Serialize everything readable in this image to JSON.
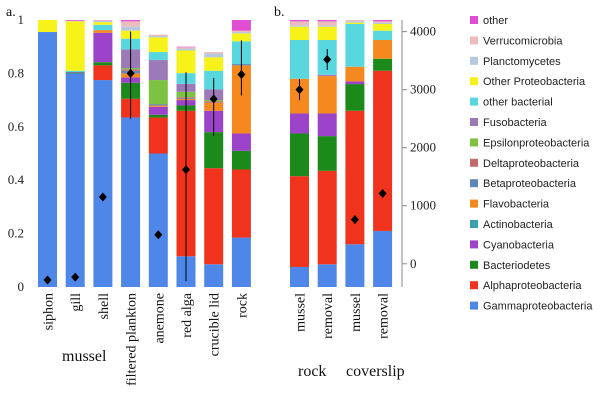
{
  "chart_data": {
    "type": "bar",
    "stacked": true,
    "left_axis": {
      "ylim": [
        0,
        1
      ],
      "ticks": [
        "0",
        "0.2",
        "0.4",
        "0.6",
        "0.8",
        "1"
      ]
    },
    "right_axis": {
      "ylim": [
        -400,
        4200
      ],
      "ticks": [
        "0",
        "1000",
        "2000",
        "3000",
        "4000"
      ]
    },
    "panel_labels": [
      "a.",
      "b."
    ],
    "group_labels": [
      "mussel",
      "rock",
      "coverslip"
    ],
    "series_order": [
      "Gammaproteobacteria",
      "Alphaproteobacteria",
      "Bacteriodetes",
      "Cyanobacteria",
      "Actinobacteria",
      "Flavobacteria",
      "Betaproteobacteria",
      "Deltaproteobacteria",
      "Epsilonproteobacteria",
      "Fusobacteria",
      "other bacterial",
      "Other Proteobacteria",
      "Planctomycetes",
      "Verrucomicrobia",
      "other"
    ],
    "series_colors": {
      "Gammaproteobacteria": "#4f87e8",
      "Alphaproteobacteria": "#f0331c",
      "Bacteriodetes": "#1b8a1b",
      "Cyanobacteria": "#9b43c9",
      "Actinobacteria": "#3c9fae",
      "Flavobacteria": "#f5891f",
      "Betaproteobacteria": "#5f86b6",
      "Deltaproteobacteria": "#c36a6a",
      "Epsilonproteobacteria": "#7ec242",
      "Fusobacteria": "#9b7ab7",
      "other bacterial": "#59d7df",
      "Other Proteobacteria": "#f6f21a",
      "Planctomycetes": "#b6c8dc",
      "Verrucomicrobia": "#ecbcbc",
      "other": "#e04fd2"
    },
    "legend": [
      "other",
      "Verrucomicrobia",
      "Planctomycetes",
      "Other Proteobacteria",
      "other bacterial",
      "Fusobacteria",
      "Epsilonproteobacteria",
      "Deltaproteobacteria",
      "Betaproteobacteria",
      "Flavobacteria",
      "Actinobacteria",
      "Cyanobacteria",
      "Bacteriodetes",
      "Alphaproteobacteria",
      "Gammaproteobacteria"
    ],
    "panels": [
      {
        "categories": [
          "siphon",
          "gill",
          "shell",
          "filtered plankton",
          "anemone",
          "red alga",
          "crucible lid",
          "rock"
        ],
        "series": [
          {
            "name": "Gammaproteobacteria",
            "values": [
              0.955,
              0.8,
              0.775,
              0.635,
              0.5,
              0.115,
              0.085,
              0.185
            ]
          },
          {
            "name": "Alphaproteobacteria",
            "values": [
              0,
              0,
              0.055,
              0.07,
              0.135,
              0.545,
              0.36,
              0.255
            ]
          },
          {
            "name": "Bacteriodetes",
            "values": [
              0,
              0.003,
              0.012,
              0.06,
              0.01,
              0.02,
              0.135,
              0.07
            ]
          },
          {
            "name": "Cyanobacteria",
            "values": [
              0,
              0.002,
              0.11,
              0.02,
              0.03,
              0.02,
              0.08,
              0.065
            ]
          },
          {
            "name": "Actinobacteria",
            "values": [
              0,
              0,
              0,
              0,
              0,
              0,
              0,
              0
            ]
          },
          {
            "name": "Flavobacteria",
            "values": [
              0,
              0,
              0.01,
              0.015,
              0.005,
              0.005,
              0.03,
              0.255
            ]
          },
          {
            "name": "Betaproteobacteria",
            "values": [
              0,
              0,
              0,
              0.01,
              0.005,
              0.003,
              0,
              0.005
            ]
          },
          {
            "name": "Deltaproteobacteria",
            "values": [
              0,
              0,
              0,
              0.005,
              0,
              0.003,
              0.005,
              0
            ]
          },
          {
            "name": "Epsilonproteobacteria",
            "values": [
              0,
              0,
              0,
              0.005,
              0.09,
              0.02,
              0.005,
              0
            ]
          },
          {
            "name": "Fusobacteria",
            "values": [
              0,
              0,
              0,
              0.07,
              0.075,
              0.03,
              0.04,
              0
            ]
          },
          {
            "name": "other bacterial",
            "values": [
              0,
              0.005,
              0.02,
              0.04,
              0.03,
              0.04,
              0.07,
              0.085
            ]
          },
          {
            "name": "Other Proteobacteria",
            "values": [
              0.045,
              0.185,
              0.01,
              0.03,
              0.055,
              0.085,
              0.05,
              0.03
            ]
          },
          {
            "name": "Planctomycetes",
            "values": [
              0,
              0,
              0.005,
              0.015,
              0.005,
              0.007,
              0.015,
              0.005
            ]
          },
          {
            "name": "Verrucomicrobia",
            "values": [
              0,
              0.002,
              0.002,
              0.02,
              0.005,
              0.005,
              0.005,
              0.005
            ]
          },
          {
            "name": "other",
            "values": [
              0,
              0.003,
              0.001,
              0.005,
              0,
              0.002,
              0,
              0.04
            ]
          }
        ],
        "right_axis_points": {
          "name": "markers",
          "values": [
            -280,
            -230,
            1150,
            3280,
            500,
            1620,
            2840,
            3260
          ],
          "error_low": [
            -280,
            -230,
            1150,
            2500,
            500,
            -300,
            2200,
            2900
          ],
          "error_high": [
            -280,
            -230,
            1150,
            4000,
            500,
            3300,
            3200,
            3850
          ]
        }
      },
      {
        "categories": [
          "mussel",
          "removal",
          "mussel",
          "removal"
        ],
        "series": [
          {
            "name": "Gammaproteobacteria",
            "values": [
              0.075,
              0.085,
              0.16,
              0.21
            ]
          },
          {
            "name": "Alphaproteobacteria",
            "values": [
              0.34,
              0.35,
              0.5,
              0.6
            ]
          },
          {
            "name": "Bacteriodetes",
            "values": [
              0.16,
              0.13,
              0.1,
              0.045
            ]
          },
          {
            "name": "Cyanobacteria",
            "values": [
              0.075,
              0.085,
              0.01,
              0
            ]
          },
          {
            "name": "Actinobacteria",
            "values": [
              0,
              0,
              0,
              0
            ]
          },
          {
            "name": "Flavobacteria",
            "values": [
              0.13,
              0.14,
              0.055,
              0.07
            ]
          },
          {
            "name": "Betaproteobacteria",
            "values": [
              0,
              0,
              0,
              0
            ]
          },
          {
            "name": "Deltaproteobacteria",
            "values": [
              0,
              0,
              0,
              0
            ]
          },
          {
            "name": "Epsilonproteobacteria",
            "values": [
              0,
              0,
              0,
              0
            ]
          },
          {
            "name": "Fusobacteria",
            "values": [
              0,
              0.005,
              0,
              0
            ]
          },
          {
            "name": "other bacterial",
            "values": [
              0.145,
              0.13,
              0.16,
              0.035
            ]
          },
          {
            "name": "Other Proteobacteria",
            "values": [
              0.05,
              0.05,
              0.005,
              0.025
            ]
          },
          {
            "name": "Planctomycetes",
            "values": [
              0.005,
              0.005,
              0.005,
              0.005
            ]
          },
          {
            "name": "Verrucomicrobia",
            "values": [
              0.015,
              0.015,
              0.005,
              0.005
            ]
          },
          {
            "name": "other",
            "values": [
              0.005,
              0.005,
              0,
              0.005
            ]
          }
        ],
        "right_axis_points": {
          "name": "markers",
          "values": [
            3000,
            3520,
            760,
            1210
          ],
          "error_low": [
            2820,
            3340,
            760,
            1210
          ],
          "error_high": [
            3180,
            3700,
            760,
            1210
          ]
        }
      }
    ]
  }
}
